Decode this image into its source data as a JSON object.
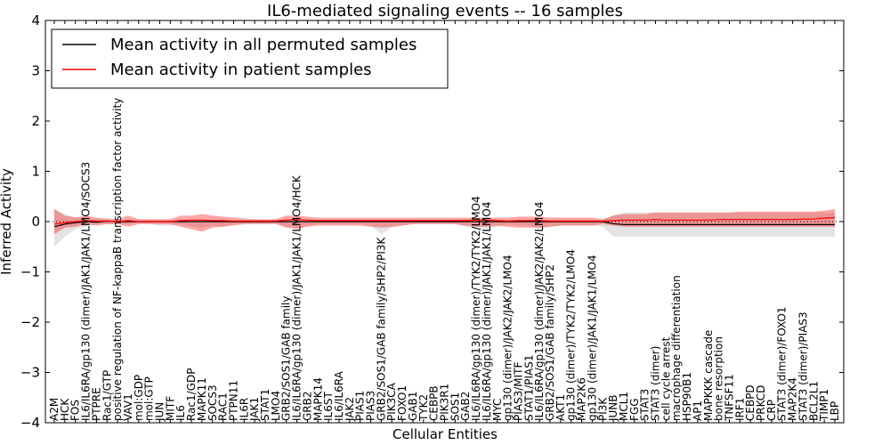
{
  "chart_data": {
    "type": "line",
    "title": "IL6-mediated signaling events -- 16 samples",
    "xlabel": "Cellular Entities",
    "ylabel": "Inferred Activity",
    "ylim": [
      -4,
      4
    ],
    "yticks": [
      -4,
      -3,
      -2,
      -1,
      0,
      1,
      2,
      3,
      4
    ],
    "ytick_labels": [
      "−4",
      "−3",
      "−2",
      "−1",
      "0",
      "1",
      "2",
      "3",
      "4"
    ],
    "grid": false,
    "legend_position": "top-left",
    "categories": [
      "A2M",
      "HCK",
      "FOS",
      "IL6/IL6RA/gp130 (dimer)/JAK1/JAK1/LMO4/SOCS3",
      "PTPRE",
      "Rac1/GTP",
      "positive regulation of NF-kappaB transcription factor activity",
      "VAV1",
      "mol:GDP",
      "mol:GTP",
      "JUN",
      "MITF",
      "IL6",
      "Rac1/GDP",
      "MAPK11",
      "SOCS3",
      "RAC1",
      "PTPN11",
      "IL6R",
      "JAK1",
      "STAT1",
      "LMO4",
      "GRB2/SOS1/GAB family",
      "IL6/IL6RA/gp130 (dimer)/JAK1/JAK1/LMO4/HCK",
      "GRB2",
      "MAPK14",
      "IL6ST",
      "IL6/IL6RA",
      "JAK2",
      "PIAS1",
      "PIAS3",
      "GRB2/SOS1/GAB family/SHP2/PI3K",
      "PIK3CA",
      "FOXO1",
      "GAB1",
      "TYK2",
      "CEBPB",
      "PIK3R1",
      "SOS1",
      "GAB2",
      "IL6/IL6RA/gp130 (dimer)/TYK2/TYK2/LMO4",
      "IL6/IL6RA/gp130 (dimer)/JAK1/JAK1/LMO4",
      "MYC",
      "gp130 (dimer)/JAK2/JAK2/LMO4",
      "PIAS3/MITF",
      "STAT1/PIAS1",
      "IL6/IL6RA/gp130 (dimer)/JAK2/JAK2/LMO4",
      "GRB2/SOS1/GAB family/SHP2",
      "AKT1",
      "gp130 (dimer)/TYK2/TYK2/LMO4",
      "MAP2K6",
      "gp130 (dimer)/JAK1/JAK1/LMO4",
      "PI3K",
      "JUNB",
      "MCL1",
      "FGG",
      "STAT3",
      "STAT3 (dimer)",
      "cell cycle arrest",
      "macrophage differentiation",
      "HSP90B1",
      "AP1",
      "MAPKKK cascade",
      "bone resorption",
      "TNFSF11",
      "IRF1",
      "CEBPD",
      "PRKCD",
      "CRP",
      "STAT3 (dimer)/FOXO1",
      "MAP2K4",
      "STAT3 (dimer)/PIAS3",
      "BCL2L1",
      "TIMP1",
      "LBP"
    ],
    "series": [
      {
        "name": "Mean activity in all permuted samples",
        "color": "#000000",
        "values": [
          -0.1,
          -0.05,
          -0.02,
          0,
          -0.01,
          0.01,
          0,
          0,
          0,
          0,
          0,
          0,
          0,
          0,
          0,
          0,
          0,
          0,
          0,
          0,
          0,
          0,
          0,
          0,
          0,
          0,
          0,
          0,
          0,
          0,
          0,
          0,
          0,
          0,
          0,
          0,
          0,
          0,
          0,
          0,
          0,
          0,
          0,
          0,
          0,
          0,
          0,
          0,
          0,
          0,
          0,
          0,
          0,
          -0.04,
          -0.06,
          -0.06,
          -0.06,
          -0.06,
          -0.06,
          -0.06,
          -0.06,
          -0.06,
          -0.06,
          -0.06,
          -0.06,
          -0.06,
          -0.06,
          -0.06,
          -0.06,
          -0.06,
          -0.06,
          -0.06,
          -0.06,
          -0.06,
          -0.06
        ],
        "band_low": [
          -0.5,
          -0.3,
          -0.15,
          -0.1,
          -0.05,
          -0.05,
          -0.05,
          -0.05,
          -0.03,
          -0.05,
          -0.08,
          -0.08,
          -0.05,
          -0.1,
          -0.12,
          -0.08,
          -0.1,
          -0.05,
          -0.05,
          -0.05,
          -0.05,
          -0.03,
          -0.1,
          -0.12,
          -0.08,
          -0.05,
          -0.05,
          -0.05,
          -0.05,
          -0.05,
          -0.08,
          -0.25,
          -0.12,
          -0.08,
          -0.05,
          -0.05,
          -0.05,
          -0.05,
          -0.05,
          -0.1,
          -0.15,
          -0.15,
          -0.1,
          -0.05,
          -0.08,
          -0.08,
          -0.15,
          -0.1,
          -0.08,
          -0.08,
          -0.08,
          -0.08,
          -0.1,
          -0.3,
          -0.3,
          -0.3,
          -0.3,
          -0.3,
          -0.3,
          -0.3,
          -0.3,
          -0.3,
          -0.3,
          -0.3,
          -0.3,
          -0.3,
          -0.3,
          -0.3,
          -0.3,
          -0.3,
          -0.3,
          -0.3,
          -0.3,
          -0.3,
          -0.3
        ],
        "band_high": [
          0.25,
          0.15,
          0.08,
          0.05,
          0.05,
          0.03,
          0.03,
          0.03,
          0.03,
          0.03,
          0.03,
          0.03,
          0.03,
          0.03,
          0.03,
          0.03,
          0.03,
          0.03,
          0.03,
          0.03,
          0.03,
          0.03,
          0.05,
          0.05,
          0.03,
          0.03,
          0.03,
          0.03,
          0.03,
          0.03,
          0.03,
          0.03,
          0.03,
          0.03,
          0.03,
          0.03,
          0.03,
          0.03,
          0.03,
          0.05,
          0.05,
          0.05,
          0.03,
          0.03,
          0.03,
          0.03,
          0.03,
          0.03,
          0.03,
          0.03,
          0.03,
          0.03,
          0.03,
          0.12,
          0.18,
          0.18,
          0.18,
          0.18,
          0.18,
          0.18,
          0.18,
          0.18,
          0.18,
          0.18,
          0.18,
          0.18,
          0.18,
          0.18,
          0.18,
          0.18,
          0.18,
          0.18,
          0.18,
          0.18,
          0.18
        ]
      },
      {
        "name": "Mean activity in patient samples",
        "color": "#ff0000",
        "values": [
          -0.05,
          -0.02,
          0,
          0.02,
          0.01,
          0.01,
          0,
          0.02,
          0,
          0,
          0,
          0,
          0.02,
          0.03,
          0.03,
          0.02,
          0.02,
          0.01,
          0.01,
          0.01,
          0.01,
          0.01,
          0.03,
          0.04,
          0.03,
          0.02,
          0.02,
          0.02,
          0.02,
          0.02,
          0.02,
          0.02,
          0.02,
          0.02,
          0.02,
          0.02,
          0.02,
          0.02,
          0.02,
          0.02,
          0.03,
          0.03,
          0.02,
          0.01,
          0.02,
          0.02,
          0.02,
          0.01,
          0.01,
          0.01,
          0.01,
          0.01,
          0.01,
          0.02,
          0.03,
          0.03,
          0.03,
          0.04,
          0.03,
          0.03,
          0.03,
          0.03,
          0.03,
          0.04,
          0.04,
          0.04,
          0.04,
          0.04,
          0.04,
          0.04,
          0.04,
          0.05,
          0.05,
          0.07,
          0.08
        ],
        "band_low": [
          -0.25,
          -0.12,
          -0.1,
          -0.05,
          -0.08,
          -0.05,
          -0.05,
          -0.1,
          -0.05,
          -0.05,
          -0.05,
          -0.05,
          -0.1,
          -0.15,
          -0.2,
          -0.12,
          -0.1,
          -0.08,
          -0.05,
          -0.05,
          -0.05,
          -0.05,
          -0.12,
          -0.15,
          -0.1,
          -0.08,
          -0.08,
          -0.08,
          -0.08,
          -0.08,
          -0.1,
          -0.12,
          -0.1,
          -0.08,
          -0.05,
          -0.05,
          -0.05,
          -0.05,
          -0.05,
          -0.08,
          -0.1,
          -0.1,
          -0.08,
          -0.1,
          -0.12,
          -0.12,
          -0.12,
          -0.1,
          -0.08,
          -0.08,
          -0.08,
          -0.08,
          -0.05,
          -0.08,
          -0.1,
          -0.1,
          -0.1,
          -0.1,
          -0.1,
          -0.1,
          -0.1,
          -0.1,
          -0.1,
          -0.1,
          -0.1,
          -0.1,
          -0.1,
          -0.1,
          -0.1,
          -0.1,
          -0.1,
          -0.1,
          -0.1,
          -0.1,
          -0.1
        ],
        "band_high": [
          0.25,
          0.12,
          0.08,
          0.12,
          0.08,
          0.06,
          0.05,
          0.12,
          0.05,
          0.05,
          0.05,
          0.05,
          0.12,
          0.12,
          0.15,
          0.12,
          0.1,
          0.08,
          0.06,
          0.05,
          0.05,
          0.05,
          0.12,
          0.12,
          0.1,
          0.08,
          0.08,
          0.08,
          0.08,
          0.08,
          0.08,
          0.08,
          0.08,
          0.08,
          0.08,
          0.08,
          0.08,
          0.08,
          0.08,
          0.08,
          0.08,
          0.08,
          0.08,
          0.08,
          0.1,
          0.1,
          0.1,
          0.08,
          0.08,
          0.08,
          0.08,
          0.08,
          0.05,
          0.12,
          0.15,
          0.15,
          0.15,
          0.18,
          0.18,
          0.18,
          0.18,
          0.18,
          0.18,
          0.18,
          0.18,
          0.2,
          0.2,
          0.2,
          0.2,
          0.2,
          0.2,
          0.2,
          0.2,
          0.22,
          0.25
        ]
      }
    ]
  }
}
